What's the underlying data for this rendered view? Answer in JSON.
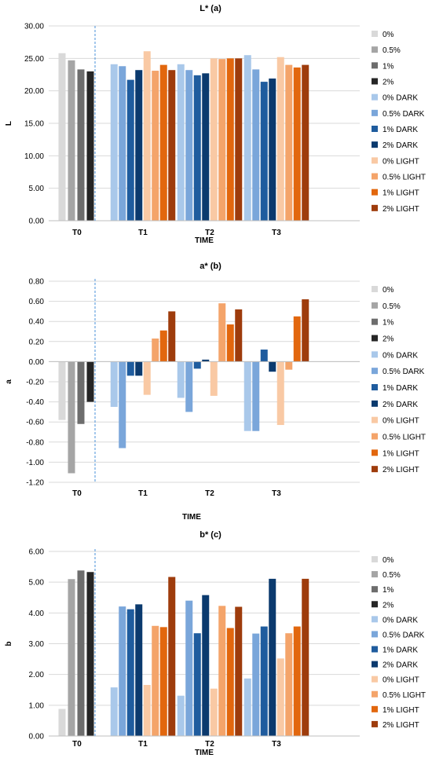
{
  "colors": [
    "#d9d9d9",
    "#a5a5a5",
    "#6d6d6d",
    "#262626",
    "#a9c8ea",
    "#7aa6da",
    "#1f5c9e",
    "#0b3a6e",
    "#f9c9a4",
    "#f4a46a",
    "#e2670e",
    "#9e3c0c"
  ],
  "chart_data": [
    {
      "type": "bar",
      "title": "L* (a)",
      "xlabel": "TIME",
      "ylabel": "L",
      "ylim": [
        0,
        30
      ],
      "yticks": [
        "0.00",
        "5.00",
        "10.00",
        "15.00",
        "20.00",
        "25.00",
        "30.00"
      ],
      "grid": true,
      "legend": "right",
      "legend_entries": [
        "0%",
        "0.5%",
        "1%",
        "2%",
        "0% DARK",
        "0.5% DARK",
        "1% DARK",
        "2% DARK",
        "0% LIGHT",
        "0.5% LIGHT",
        "1% LIGHT",
        "2% LIGHT"
      ],
      "categories": [
        "T0",
        "T1",
        "T2",
        "T3"
      ],
      "groups": [
        {
          "category": "T0",
          "series": [
            0,
            1,
            2,
            3
          ],
          "values": [
            25.8,
            24.7,
            23.3,
            23.0
          ]
        },
        {
          "category": "T1",
          "series": [
            4,
            5,
            6,
            7,
            8,
            9,
            10,
            11
          ],
          "values": [
            24.1,
            23.8,
            21.7,
            23.2,
            26.1,
            23.1,
            24.0,
            23.2
          ]
        },
        {
          "category": "T2",
          "series": [
            4,
            5,
            6,
            7,
            8,
            9,
            10,
            11
          ],
          "values": [
            24.1,
            23.2,
            22.4,
            22.7,
            25.0,
            24.9,
            25.0,
            25.0
          ]
        },
        {
          "category": "T3",
          "series": [
            4,
            5,
            6,
            7,
            8,
            9,
            10,
            11
          ],
          "values": [
            25.5,
            23.3,
            21.4,
            21.9,
            25.2,
            24.0,
            23.6,
            24.0
          ]
        }
      ]
    },
    {
      "type": "bar",
      "title": "a* (b)",
      "xlabel": "TIME",
      "ylabel": "a",
      "ylim": [
        -1.2,
        0.8
      ],
      "yticks": [
        "-1.20",
        "-1.00",
        "-0.80",
        "-0.60",
        "-0.40",
        "-0.20",
        "0.00",
        "0.20",
        "0.40",
        "0.60",
        "0.80"
      ],
      "grid": true,
      "legend": "right",
      "legend_entries": [
        "0%",
        "0.5%",
        "1%",
        "2%",
        "0% DARK",
        "0.5% DARK",
        "1% DARK",
        "2% DARK",
        "0% LIGHT",
        "0.5% LIGHT",
        "1% LIGHT",
        "2% LIGHT"
      ],
      "categories": [
        "T0",
        "T1",
        "T2",
        "T3"
      ],
      "groups": [
        {
          "category": "T0",
          "series": [
            0,
            1,
            2,
            3
          ],
          "values": [
            -0.58,
            -1.11,
            -0.62,
            -0.4
          ]
        },
        {
          "category": "T1",
          "series": [
            4,
            5,
            6,
            7,
            8,
            9,
            10,
            11
          ],
          "values": [
            -0.45,
            -0.86,
            -0.14,
            -0.14,
            -0.33,
            0.23,
            0.31,
            0.5
          ]
        },
        {
          "category": "T2",
          "series": [
            4,
            5,
            6,
            7,
            8,
            9,
            10,
            11
          ],
          "values": [
            -0.36,
            -0.5,
            -0.07,
            0.02,
            -0.34,
            0.58,
            0.37,
            0.52
          ]
        },
        {
          "category": "T3",
          "series": [
            4,
            5,
            6,
            7,
            8,
            9,
            10,
            11
          ],
          "values": [
            -0.69,
            -0.69,
            0.12,
            -0.1,
            -0.63,
            -0.08,
            0.45,
            0.62
          ]
        }
      ]
    },
    {
      "type": "bar",
      "title": "b* (c)",
      "xlabel": "TIME",
      "ylabel": "b",
      "ylim": [
        0,
        6
      ],
      "yticks": [
        "0.00",
        "1.00",
        "2.00",
        "3.00",
        "4.00",
        "5.00",
        "6.00"
      ],
      "grid": true,
      "legend": "right",
      "legend_entries": [
        "0%",
        "0.5%",
        "1%",
        "2%",
        "0% DARK",
        "0.5% DARK",
        "1% DARK",
        "2% DARK",
        "0% LIGHT",
        "0.5% LIGHT",
        "1% LIGHT",
        "2% LIGHT"
      ],
      "categories": [
        "T0",
        "T1",
        "T2",
        "T3"
      ],
      "groups": [
        {
          "category": "T0",
          "series": [
            0,
            1,
            2,
            3
          ],
          "values": [
            0.88,
            5.1,
            5.38,
            5.33
          ]
        },
        {
          "category": "T1",
          "series": [
            4,
            5,
            6,
            7,
            8,
            9,
            10,
            11
          ],
          "values": [
            1.58,
            4.21,
            4.12,
            4.28,
            1.66,
            3.58,
            3.54,
            5.17
          ]
        },
        {
          "category": "T2",
          "series": [
            4,
            5,
            6,
            7,
            8,
            9,
            10,
            11
          ],
          "values": [
            1.31,
            4.4,
            3.34,
            4.58,
            1.54,
            4.23,
            3.51,
            4.2
          ]
        },
        {
          "category": "T3",
          "series": [
            4,
            5,
            6,
            7,
            8,
            9,
            10,
            11
          ],
          "values": [
            1.87,
            3.33,
            3.56,
            5.11,
            2.52,
            3.34,
            3.56,
            5.11
          ]
        }
      ]
    }
  ]
}
